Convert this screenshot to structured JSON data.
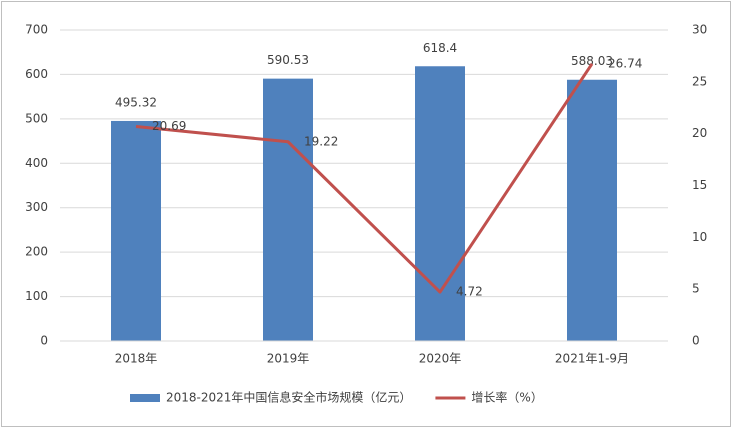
{
  "chart_data": {
    "type": "bar",
    "categories": [
      "2018年",
      "2019年",
      "2020年",
      "2021年1-9月"
    ],
    "series": [
      {
        "name": "2018-2021年中国信息安全市场规模（亿元）",
        "type": "bar",
        "color": "#4f81bd",
        "values": [
          495.32,
          590.53,
          618.4,
          588.03
        ]
      },
      {
        "name": "增长率（%）",
        "type": "line",
        "axis": "y2",
        "color": "#c0504d",
        "values": [
          20.69,
          19.22,
          4.72,
          26.74
        ]
      }
    ],
    "ylim": [
      0,
      700
    ],
    "yticks": [
      0,
      100,
      200,
      300,
      400,
      500,
      600,
      700
    ],
    "y2lim": [
      0,
      30
    ],
    "y2ticks": [
      0,
      5,
      10,
      15,
      20,
      25,
      30
    ],
    "grid": true,
    "legend": "bottom"
  }
}
